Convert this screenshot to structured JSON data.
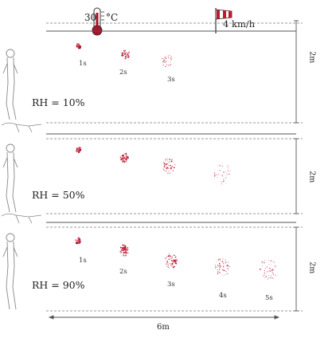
{
  "header": {
    "temperature_label": "30",
    "temperature_unit": "°C",
    "wind_label": "4 km/h"
  },
  "panels": [
    {
      "rh_label": "RH = 10%",
      "time_labels": [
        "1s",
        "2s",
        "3s"
      ],
      "height_label": "2m"
    },
    {
      "rh_label": "RH = 50%",
      "time_labels": [],
      "height_label": "2m"
    },
    {
      "rh_label": "RH = 90%",
      "time_labels": [
        "1s",
        "2s",
        "3s",
        "4s",
        "5s"
      ],
      "height_label": "2m"
    }
  ],
  "distance_label": "6m",
  "colors": {
    "droplet": "#b0102a",
    "droplet_light": "#d86070",
    "line": "#555555",
    "figure": "#888888"
  }
}
